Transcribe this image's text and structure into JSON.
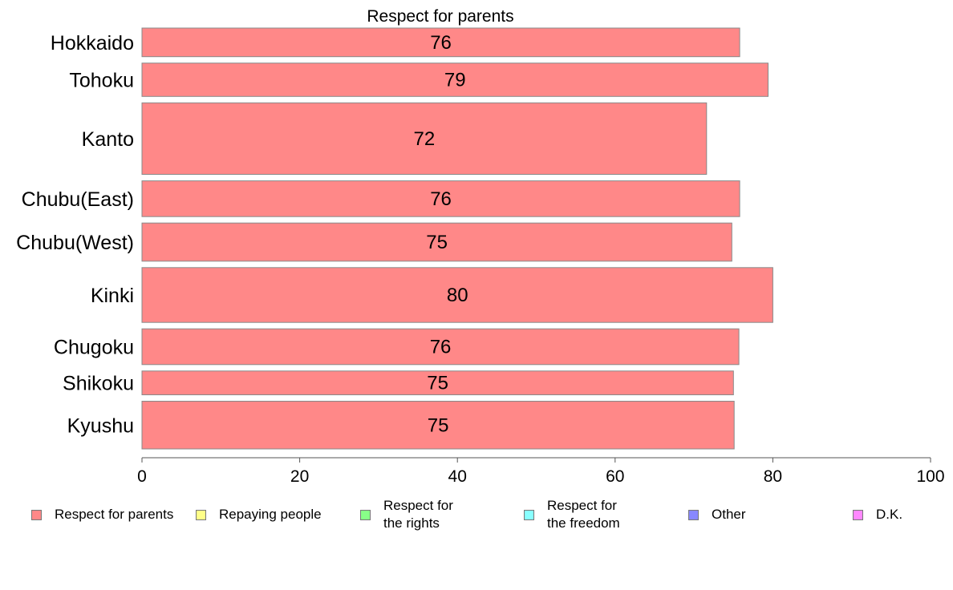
{
  "chart_data": {
    "type": "bar",
    "orientation": "horizontal",
    "title": "Respect for parents",
    "categories": [
      "Hokkaido",
      "Tohoku",
      "Kanto",
      "Chubu(East)",
      "Chubu(West)",
      "Kinki",
      "Chugoku",
      "Shikoku",
      "Kyushu"
    ],
    "category_weights": [
      0.6,
      0.7,
      1.5,
      0.75,
      0.8,
      1.15,
      0.75,
      0.5,
      1.0
    ],
    "series": [
      {
        "name": "Respect for parents",
        "values": [
          75.8,
          79.4,
          71.6,
          75.8,
          74.8,
          80.0,
          75.7,
          75.0,
          75.1
        ],
        "color": "#ff8888"
      }
    ],
    "data_labels": [
      "76",
      "79",
      "72",
      "76",
      "75",
      "80",
      "76",
      "75",
      "75"
    ],
    "xlim": [
      0,
      100
    ],
    "x_ticks": [
      0,
      20,
      40,
      60,
      80,
      100
    ],
    "x_tick_labels": [
      "0",
      "20",
      "40",
      "60",
      "80",
      "100"
    ],
    "xlabel": "",
    "ylabel": "",
    "grid": false,
    "legend_position": "bottom"
  },
  "legend": [
    {
      "label": "Respect for parents",
      "color": "#ff8888"
    },
    {
      "label": "Repaying people",
      "color": "#ffff88"
    },
    {
      "label": "Respect for\nthe rights",
      "color": "#88ff88"
    },
    {
      "label": "Respect for\nthe freedom",
      "color": "#88ffff"
    },
    {
      "label": "Other",
      "color": "#8888ff"
    },
    {
      "label": "D.K.",
      "color": "#ff88ff"
    }
  ]
}
